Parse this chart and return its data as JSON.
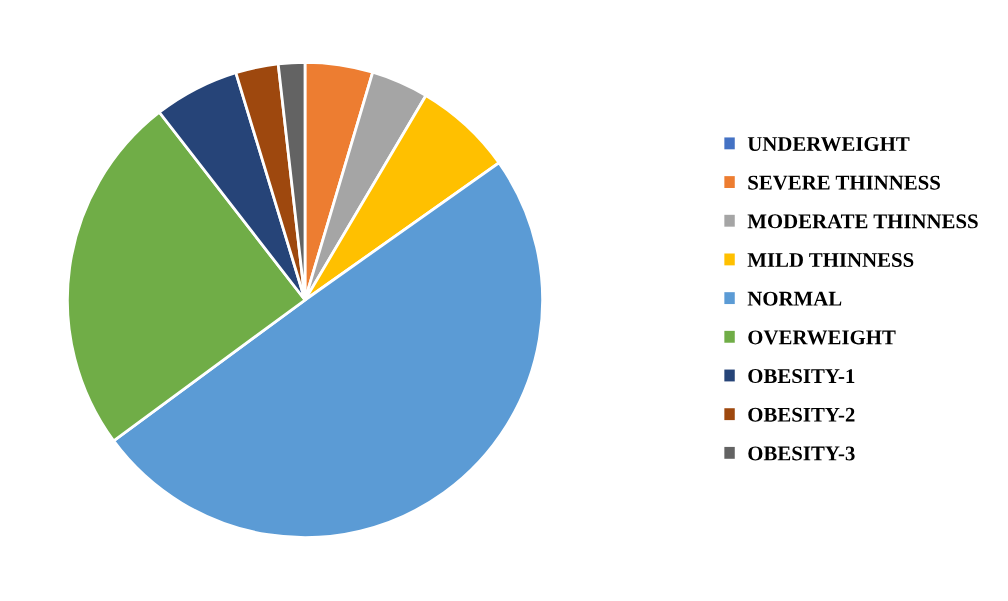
{
  "chart_data": {
    "type": "pie",
    "categories": [
      "UNDERWEIGHT",
      "SEVERE THINNESS",
      "MODERATE THINNESS",
      "MILD THINNESS",
      "NORMAL",
      "OVERWEIGHT",
      "OBESITY-1",
      "OBESITY-2",
      "OBESITY-3"
    ],
    "values": [
      0,
      4.6,
      3.9,
      6.7,
      49.7,
      24.6,
      5.8,
      2.9,
      1.8
    ],
    "colors": [
      "#4472c4",
      "#ed7d31",
      "#a5a5a5",
      "#ffc000",
      "#5b9bd5",
      "#70ad47",
      "#264478",
      "#9e480e",
      "#636363"
    ],
    "legend": "right"
  }
}
